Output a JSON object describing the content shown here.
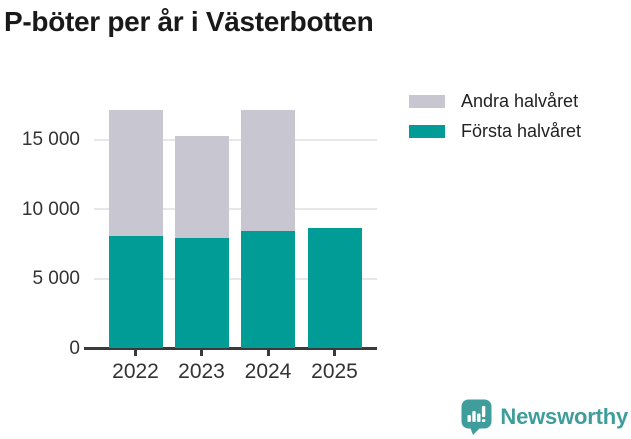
{
  "title": "P-böter per år i Västerbotten",
  "legend": {
    "items": [
      {
        "label": "Andra halvåret",
        "color": "#c8c7d1"
      },
      {
        "label": "Första halvåret",
        "color": "#009c95"
      }
    ]
  },
  "branding": {
    "wordmark": "Newsworthy",
    "icon": "newsworthy-speech-bubble-bar-chart-icon",
    "color": "#3f9d9c"
  },
  "colors": {
    "first_half": "#009c95",
    "second_half": "#c8c7d1",
    "grid": "#e7e7ea",
    "axis": "#3a3a3a",
    "tick_label": "#333333",
    "title_text": "#191919"
  },
  "chart_data": {
    "type": "bar",
    "stacked": true,
    "title": "P-böter per år i Västerbotten",
    "categories": [
      "2022",
      "2023",
      "2024",
      "2025"
    ],
    "series": [
      {
        "name": "Första halvåret",
        "color": "#009c95",
        "values": [
          8050,
          7900,
          8400,
          8600
        ]
      },
      {
        "name": "Andra halvåret",
        "color": "#c8c7d1",
        "values": [
          9100,
          7350,
          8700,
          0
        ]
      }
    ],
    "totals": [
      17150,
      15250,
      17100,
      8600
    ],
    "xlabel": "",
    "ylabel": "",
    "ylim": [
      0,
      17500
    ],
    "yticks": [
      0,
      5000,
      10000,
      15000
    ],
    "ytick_labels": [
      "0",
      "5 000",
      "10 000",
      "15 000"
    ],
    "grid": true,
    "legend_position": "top-right"
  }
}
